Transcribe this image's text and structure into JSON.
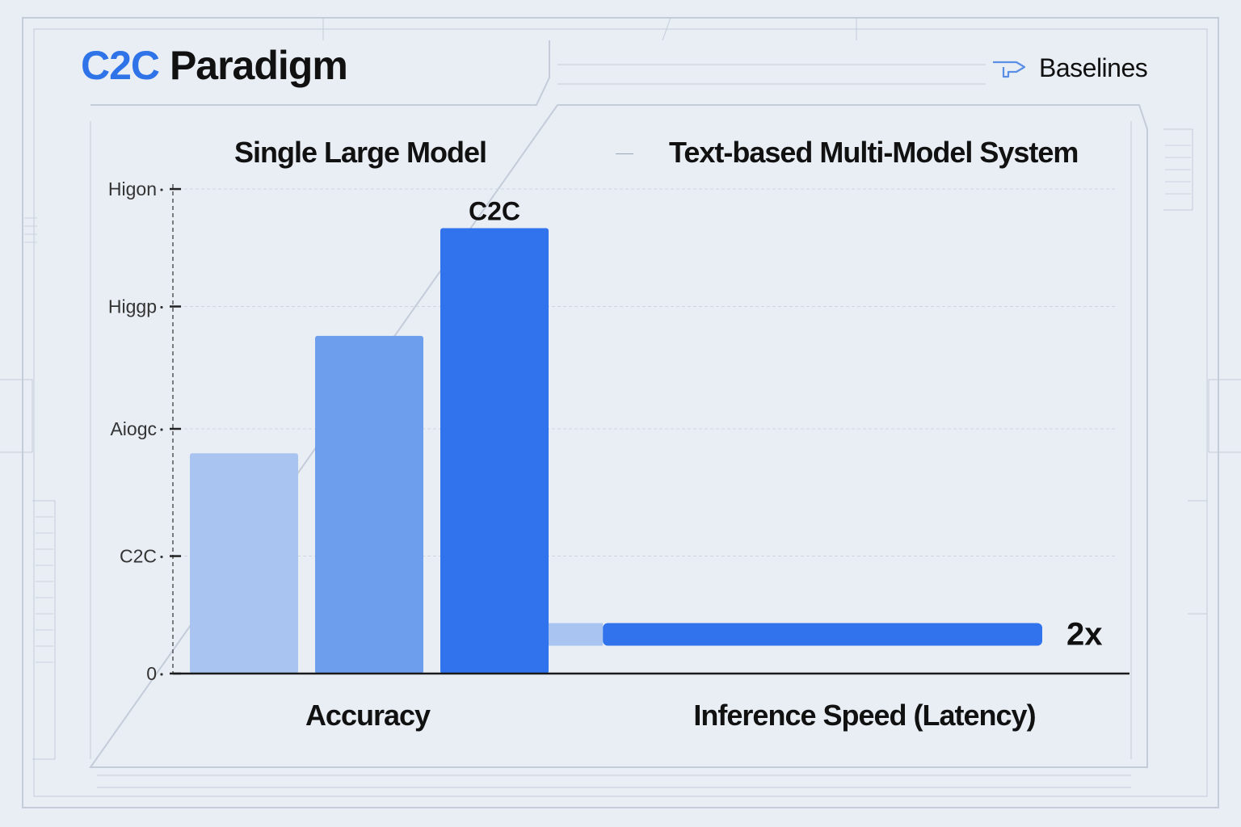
{
  "title": {
    "accent": "C2C",
    "main": "Paradigm"
  },
  "legend": {
    "label": "Baselines",
    "icon": "flow-arrow-icon"
  },
  "groups": [
    "Single Large Model",
    "Text-based Multi-Model System"
  ],
  "colors": {
    "background": "#e9eef5",
    "accent": "#2f73e8",
    "bar_light": "#a9c4f1",
    "bar_mid": "#6d9ded",
    "bar_dark": "#3173ec",
    "axis": "#1a1a1a"
  },
  "chart_data": {
    "type": "bar",
    "y_ticks": [
      {
        "label": "0",
        "value": 0
      },
      {
        "label": "C2C",
        "value": 24
      },
      {
        "label": "Aiogc",
        "value": 50
      },
      {
        "label": "Higgp",
        "value": 75
      },
      {
        "label": "Higon",
        "value": 99
      }
    ],
    "ylim": [
      0,
      100
    ],
    "grid": true,
    "accuracy": {
      "xlabel": "Accuracy",
      "bars": [
        {
          "value": 45,
          "label": ""
        },
        {
          "value": 69,
          "label": ""
        },
        {
          "value": 91,
          "label": "C2C"
        }
      ]
    },
    "latency": {
      "xlabel": "Inference Speed (Latency)",
      "level": 8,
      "segments": [
        {
          "start": 0,
          "end": 11
        },
        {
          "start": 11,
          "end": 100
        }
      ],
      "annotation": "2x"
    }
  }
}
